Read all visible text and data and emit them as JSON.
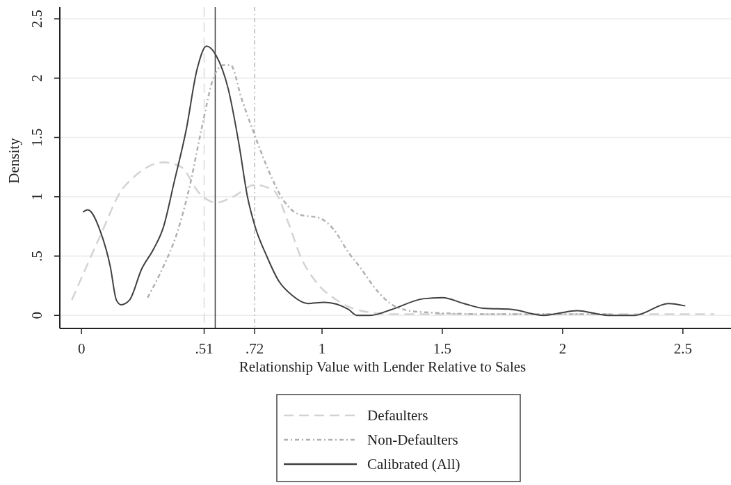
{
  "chart_data": {
    "type": "line",
    "xlabel": "Relationship Value with Lender Relative to Sales",
    "ylabel": "Density",
    "xlim": [
      -0.09,
      2.7
    ],
    "ylim": [
      -0.11,
      2.6
    ],
    "xticks": [
      0,
      {
        "value": 0.51,
        "label": ".51"
      },
      {
        "value": 0.72,
        "label": ".72"
      },
      1,
      1.5,
      2,
      2.5
    ],
    "yticks": [
      0,
      {
        "value": 0.5,
        "label": ".5"
      },
      1,
      1.5,
      2,
      2.5
    ],
    "grid": "y",
    "legend": "bottom",
    "ref_lines": [
      {
        "axis": "x",
        "value": 0.51,
        "color": "#d9d9d9",
        "line_style": "dashed"
      },
      {
        "axis": "x",
        "value": 0.556,
        "color": "#404040",
        "line_style": "solid"
      },
      {
        "axis": "x",
        "value": 0.72,
        "color": "#b8b8b8",
        "line_style": "dotted"
      }
    ],
    "series": [
      {
        "name": "Defaulters",
        "color": "#d3d3d3",
        "line_style": "dashed",
        "x": [
          -0.04,
          0.08,
          0.165,
          0.22,
          0.34,
          0.415,
          0.49,
          0.56,
          0.63,
          0.72,
          0.8,
          0.86,
          0.91,
          0.98,
          1.06,
          1.16,
          1.3,
          1.6,
          2.0,
          2.3,
          2.63
        ],
        "values": [
          0.13,
          0.68,
          1.05,
          1.17,
          1.29,
          1.25,
          1.03,
          0.95,
          1.0,
          1.1,
          1.05,
          0.78,
          0.5,
          0.27,
          0.13,
          0.04,
          0.01,
          0.01,
          0.01,
          0.01,
          0.01
        ]
      },
      {
        "name": "Non-Defaulters",
        "color": "#b0b0b0",
        "line_style": "dotted",
        "x": [
          0.275,
          0.34,
          0.395,
          0.45,
          0.5,
          0.55,
          0.59,
          0.62,
          0.665,
          0.72,
          0.78,
          0.84,
          0.905,
          0.99,
          1.05,
          1.11,
          1.16,
          1.22,
          1.3,
          1.4,
          1.7,
          2.2
        ],
        "values": [
          0.15,
          0.41,
          0.68,
          1.09,
          1.58,
          2.01,
          2.11,
          2.11,
          1.83,
          1.52,
          1.21,
          0.97,
          0.85,
          0.82,
          0.72,
          0.53,
          0.4,
          0.23,
          0.08,
          0.03,
          0.01,
          0.01
        ]
      },
      {
        "name": "Calibrated (All)",
        "color": "#404040",
        "line_style": "solid",
        "x": [
          0.006,
          0.026,
          0.08,
          0.12,
          0.145,
          0.165,
          0.2,
          0.25,
          0.3,
          0.34,
          0.386,
          0.435,
          0.48,
          0.52,
          0.56,
          0.61,
          0.655,
          0.69,
          0.72,
          0.77,
          0.82,
          0.875,
          0.94,
          1.01,
          1.11,
          1.145,
          1.2,
          1.29,
          1.42,
          1.5,
          1.59,
          1.67,
          1.79,
          1.92,
          2.06,
          2.19,
          2.3,
          2.44,
          2.51
        ],
        "values": [
          0.87,
          0.89,
          0.7,
          0.41,
          0.13,
          0.09,
          0.13,
          0.39,
          0.56,
          0.74,
          1.13,
          1.56,
          2.07,
          2.27,
          2.19,
          1.91,
          1.44,
          1.0,
          0.76,
          0.5,
          0.29,
          0.17,
          0.1,
          0.11,
          0.05,
          0.0,
          0.0,
          0.05,
          0.14,
          0.15,
          0.1,
          0.06,
          0.05,
          0.0,
          0.04,
          0.0,
          0.0,
          0.1,
          0.08
        ]
      }
    ]
  }
}
